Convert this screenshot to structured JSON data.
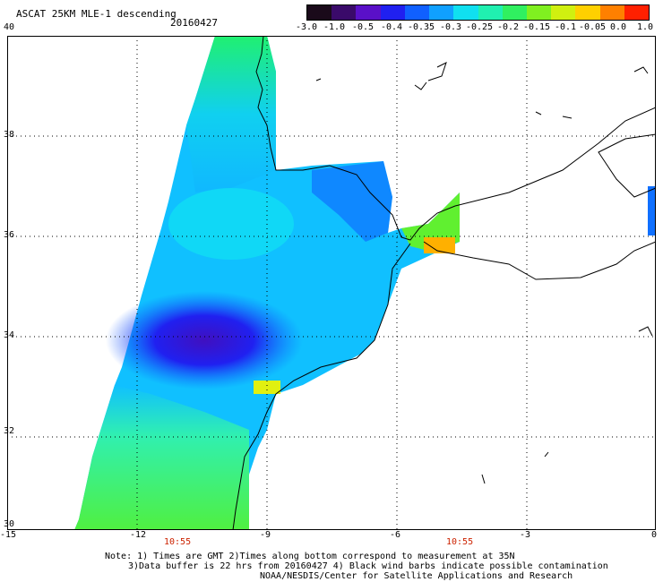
{
  "header": {
    "title": "ASCAT 25KM MLE-1 descending",
    "date": "20160427"
  },
  "colorbar": {
    "labels": [
      "-3.0",
      "-1.0",
      "-0.5",
      "-0.4",
      "-0.35",
      "-0.3",
      "-0.25",
      "-0.2",
      "-0.15",
      "-0.1",
      "-0.05",
      "0.0",
      "1.0"
    ],
    "colors": [
      "#1a0a1a",
      "#3a0a6a",
      "#5a10c8",
      "#2020f0",
      "#1060ff",
      "#10a0ff",
      "#10e0f0",
      "#20f0b0",
      "#30f060",
      "#80f020",
      "#d0f010",
      "#ffd000",
      "#ff8000",
      "#ff2000"
    ]
  },
  "map": {
    "x_ticks": [
      "-15",
      "-12",
      "-9",
      "-6",
      "-3",
      "0"
    ],
    "y_ticks": [
      "40",
      "38",
      "36",
      "34",
      "32",
      "30"
    ],
    "times": [
      "10:55",
      "10:55"
    ]
  },
  "notes": {
    "line1": "Note: 1) Times are GMT 2)Times along bottom correspond to measurement at 35N",
    "line2": "3)Data buffer is 22 hrs from 20160427 4) Black wind barbs indicate possible contamination",
    "line3": "NOAA/NESDIS/Center for Satellite Applications and Research"
  }
}
